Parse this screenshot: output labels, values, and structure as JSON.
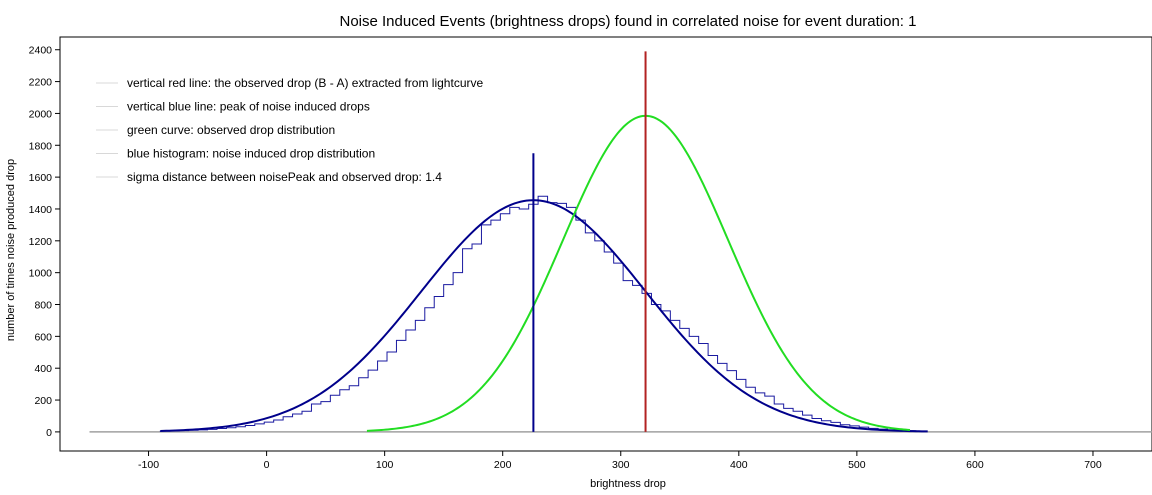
{
  "chart_data": {
    "type": "line",
    "title": "Noise Induced Events (brightness drops) found in correlated noise for event duration: 1",
    "xlabel": "brightness drop",
    "ylabel": "number of times noise produced drop",
    "xlim": [
      -175,
      750
    ],
    "ylim": [
      -120,
      2480
    ],
    "x_ticks": [
      -100,
      0,
      100,
      200,
      300,
      400,
      500,
      600,
      700
    ],
    "y_ticks": [
      0,
      200,
      400,
      600,
      800,
      1000,
      1200,
      1400,
      1600,
      1800,
      2000,
      2200,
      2400
    ],
    "grid": false,
    "legend_position": "top-left",
    "legend": [
      "vertical red line: the observed drop (B - A) extracted from lightcurve",
      "vertical blue line: peak of noise induced drops",
      "green curve: observed drop distribution",
      "blue histogram: noise induced drop distribution",
      "sigma distance between noisePeak and observed drop: 1.4"
    ],
    "colors": {
      "noise_curve": "#00008b",
      "histogram": "#1a1aa0",
      "observed_curve": "#22dd22",
      "observed_line": "#b22222",
      "peak_line": "#00008b",
      "baseline": "#a0a0a0"
    },
    "series": [
      {
        "kind": "gaussian",
        "role": "noise_curve",
        "mean": 226,
        "sigma": 95,
        "amplitude": 1455,
        "x_range": [
          -90,
          560
        ]
      },
      {
        "kind": "gaussian",
        "role": "observed_curve",
        "mean": 321,
        "sigma": 70,
        "amplitude": 1985,
        "x_range": [
          85,
          545
        ]
      },
      {
        "kind": "histogram",
        "role": "histogram",
        "bin_width": 8,
        "bins": [
          [
            -90,
            5
          ],
          [
            -82,
            6
          ],
          [
            -74,
            8
          ],
          [
            -66,
            10
          ],
          [
            -58,
            13
          ],
          [
            -50,
            16
          ],
          [
            -42,
            21
          ],
          [
            -34,
            26
          ],
          [
            -26,
            32
          ],
          [
            -18,
            40
          ],
          [
            -10,
            50
          ],
          [
            -2,
            61
          ],
          [
            6,
            75
          ],
          [
            14,
            95
          ],
          [
            22,
            112
          ],
          [
            30,
            130
          ],
          [
            38,
            175
          ],
          [
            46,
            190
          ],
          [
            54,
            230
          ],
          [
            62,
            265
          ],
          [
            70,
            290
          ],
          [
            78,
            340
          ],
          [
            86,
            388
          ],
          [
            94,
            445
          ],
          [
            102,
            502
          ],
          [
            110,
            575
          ],
          [
            118,
            640
          ],
          [
            126,
            700
          ],
          [
            134,
            780
          ],
          [
            142,
            850
          ],
          [
            150,
            925
          ],
          [
            158,
            1000
          ],
          [
            166,
            1150
          ],
          [
            174,
            1180
          ],
          [
            182,
            1300
          ],
          [
            190,
            1330
          ],
          [
            198,
            1370
          ],
          [
            206,
            1410
          ],
          [
            214,
            1400
          ],
          [
            222,
            1430
          ],
          [
            230,
            1480
          ],
          [
            238,
            1440
          ],
          [
            246,
            1435
          ],
          [
            254,
            1410
          ],
          [
            262,
            1330
          ],
          [
            270,
            1250
          ],
          [
            278,
            1200
          ],
          [
            286,
            1130
          ],
          [
            294,
            1060
          ],
          [
            302,
            950
          ],
          [
            310,
            920
          ],
          [
            318,
            870
          ],
          [
            326,
            800
          ],
          [
            334,
            760
          ],
          [
            342,
            700
          ],
          [
            350,
            650
          ],
          [
            358,
            600
          ],
          [
            366,
            555
          ],
          [
            374,
            480
          ],
          [
            382,
            430
          ],
          [
            390,
            385
          ],
          [
            398,
            330
          ],
          [
            406,
            280
          ],
          [
            414,
            245
          ],
          [
            422,
            225
          ],
          [
            430,
            175
          ],
          [
            438,
            148
          ],
          [
            446,
            130
          ],
          [
            454,
            105
          ],
          [
            462,
            84
          ],
          [
            470,
            70
          ],
          [
            478,
            60
          ],
          [
            486,
            45
          ],
          [
            494,
            38
          ],
          [
            502,
            30
          ],
          [
            510,
            22
          ],
          [
            518,
            17
          ],
          [
            526,
            13
          ],
          [
            534,
            10
          ],
          [
            542,
            7
          ],
          [
            550,
            5
          ]
        ]
      },
      {
        "kind": "vertical_line",
        "role": "observed_line",
        "x": 321,
        "y_range": [
          0,
          2390
        ]
      },
      {
        "kind": "vertical_line",
        "role": "peak_line",
        "x": 226,
        "y_range": [
          0,
          1750
        ]
      },
      {
        "kind": "baseline",
        "role": "baseline",
        "y": 0,
        "x_range": [
          -150,
          750
        ]
      }
    ]
  }
}
